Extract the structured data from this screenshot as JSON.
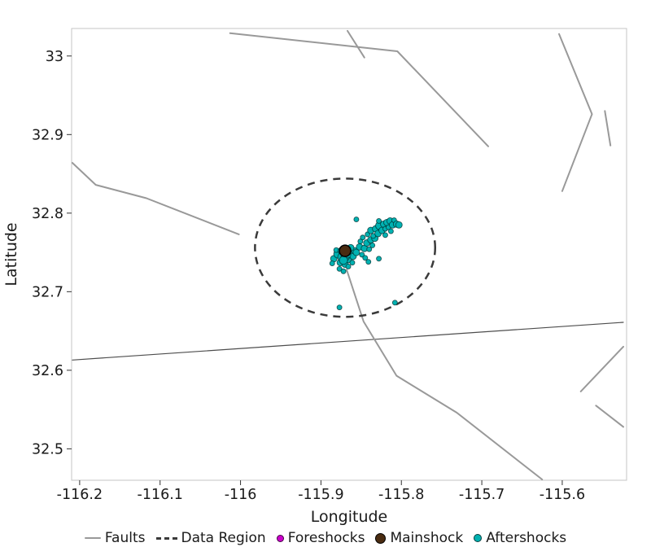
{
  "chart_data": {
    "type": "scatter",
    "title": "",
    "xlabel": "Longitude",
    "ylabel": "Latitude",
    "xlim": [
      -116.21,
      -115.52
    ],
    "ylim": [
      32.46,
      33.035
    ],
    "grid": false,
    "legend_position": "bottom",
    "x_ticks": {
      "values": [
        -116.2,
        -116.1,
        -116.0,
        -115.9,
        -115.8,
        -115.7,
        -115.6
      ],
      "labels": [
        "-116.2",
        "-116.1",
        "-116",
        "-115.9",
        "-115.8",
        "-115.7",
        "-115.6"
      ]
    },
    "y_ticks": {
      "values": [
        32.5,
        32.6,
        32.7,
        32.8,
        32.9,
        33.0
      ],
      "labels": [
        "32.5",
        "32.6",
        "32.7",
        "32.8",
        "32.9",
        "33"
      ]
    },
    "faults": {
      "label": "Faults",
      "color": "#999999",
      "lines": [
        {
          "width": 2,
          "points": [
            [
              -116.013,
              33.029
            ],
            [
              -115.805,
              33.006
            ],
            [
              -115.692,
              32.885
            ]
          ]
        },
        {
          "width": 2,
          "points": [
            [
              -115.867,
              33.032
            ],
            [
              -115.846,
              32.998
            ]
          ]
        },
        {
          "width": 2,
          "points": [
            [
              -115.604,
              33.028
            ],
            [
              -115.563,
              32.926
            ],
            [
              -115.6,
              32.828
            ]
          ]
        },
        {
          "width": 2,
          "points": [
            [
              -115.547,
              32.93
            ],
            [
              -115.54,
              32.886
            ]
          ]
        },
        {
          "width": 2,
          "points": [
            [
              -116.209,
              32.864
            ],
            [
              -116.18,
              32.836
            ],
            [
              -116.117,
              32.819
            ],
            [
              -116.002,
              32.773
            ]
          ]
        },
        {
          "width": 1.2,
          "color": "#4d4d4d",
          "points": [
            [
              -116.209,
              32.613
            ],
            [
              -115.524,
              32.661
            ]
          ]
        },
        {
          "width": 2,
          "points": [
            [
              -115.868,
              32.728
            ],
            [
              -115.847,
              32.662
            ],
            [
              -115.806,
              32.593
            ],
            [
              -115.731,
              32.546
            ],
            [
              -115.625,
              32.461
            ]
          ]
        },
        {
          "width": 2,
          "points": [
            [
              -115.524,
              32.63
            ],
            [
              -115.577,
              32.573
            ]
          ]
        },
        {
          "width": 2,
          "points": [
            [
              -115.558,
              32.555
            ],
            [
              -115.524,
              32.528
            ]
          ]
        }
      ]
    },
    "data_region": {
      "label": "Data Region",
      "color": "#3a3a3a",
      "ellipse": {
        "center": [
          -115.87,
          32.756
        ],
        "rx": 0.112,
        "ry": 0.088
      },
      "dash": "9 7",
      "width": 2.5
    },
    "foreshocks": {
      "label": "Foreshocks",
      "color": "#cc00cc",
      "points": []
    },
    "mainshock": {
      "label": "Mainshock",
      "color": "#4a2c11",
      "points": [
        [
          -115.87,
          32.752,
          7
        ]
      ]
    },
    "aftershocks": {
      "label": "Aftershocks",
      "color": "#00b2b2",
      "points": [
        [
          -115.884,
          32.742,
          4
        ],
        [
          -115.879,
          32.748,
          5
        ],
        [
          -115.876,
          32.737,
          4
        ],
        [
          -115.873,
          32.744,
          6
        ],
        [
          -115.87,
          32.735,
          4
        ],
        [
          -115.868,
          32.752,
          5
        ],
        [
          -115.866,
          32.741,
          4
        ],
        [
          -115.864,
          32.748,
          5
        ],
        [
          -115.861,
          32.737,
          3
        ],
        [
          -115.86,
          32.745,
          4
        ],
        [
          -115.858,
          32.752,
          4
        ],
        [
          -115.877,
          32.729,
          3
        ],
        [
          -115.872,
          32.726,
          3
        ],
        [
          -115.866,
          32.732,
          3
        ],
        [
          -115.881,
          32.753,
          3
        ],
        [
          -115.886,
          32.736,
          3
        ],
        [
          -115.863,
          32.756,
          4
        ],
        [
          -115.87,
          32.744,
          5
        ],
        [
          -115.875,
          32.752,
          4
        ],
        [
          -115.867,
          32.747,
          4
        ],
        [
          -115.872,
          32.74,
          5
        ],
        [
          -115.869,
          32.749,
          4
        ],
        [
          -115.856,
          32.75,
          4
        ],
        [
          -115.852,
          32.757,
          4
        ],
        [
          -115.849,
          32.747,
          3
        ],
        [
          -115.846,
          32.755,
          4
        ],
        [
          -115.843,
          32.762,
          4
        ],
        [
          -115.84,
          32.754,
          3
        ],
        [
          -115.851,
          32.764,
          3
        ],
        [
          -115.838,
          32.766,
          4
        ],
        [
          -115.845,
          32.743,
          3
        ],
        [
          -115.836,
          32.759,
          3
        ],
        [
          -115.848,
          32.769,
          3
        ],
        [
          -115.833,
          32.768,
          4
        ],
        [
          -115.842,
          32.773,
          3
        ],
        [
          -115.838,
          32.778,
          4
        ],
        [
          -115.835,
          32.771,
          3
        ],
        [
          -115.832,
          32.78,
          4
        ],
        [
          -115.829,
          32.774,
          4
        ],
        [
          -115.827,
          32.784,
          5
        ],
        [
          -115.824,
          32.778,
          4
        ],
        [
          -115.822,
          32.786,
          4
        ],
        [
          -115.82,
          32.78,
          3
        ],
        [
          -115.818,
          32.788,
          4
        ],
        [
          -115.816,
          32.782,
          3
        ],
        [
          -115.814,
          32.79,
          4
        ],
        [
          -115.811,
          32.785,
          4
        ],
        [
          -115.809,
          32.791,
          3
        ],
        [
          -115.806,
          32.786,
          4
        ],
        [
          -115.82,
          32.772,
          3
        ],
        [
          -115.813,
          32.777,
          3
        ],
        [
          -115.828,
          32.79,
          3
        ],
        [
          -115.803,
          32.785,
          4
        ],
        [
          -115.877,
          32.68,
          3
        ],
        [
          -115.808,
          32.686,
          3
        ],
        [
          -115.856,
          32.792,
          3
        ],
        [
          -115.828,
          32.742,
          3
        ],
        [
          -115.841,
          32.738,
          3
        ]
      ]
    }
  }
}
